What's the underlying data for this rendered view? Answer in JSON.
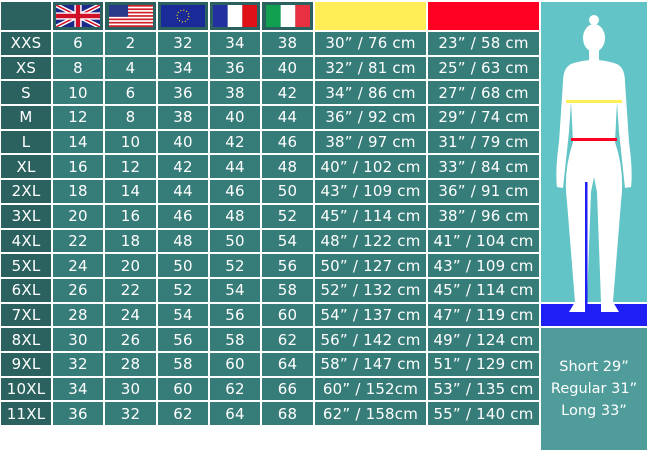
{
  "header": {
    "flags": [
      "uk-flag",
      "us-flag",
      "eu-flag",
      "france-flag",
      "italy-flag"
    ],
    "bust_color": "#ffee55",
    "waist_color": "#ff0022"
  },
  "rows": [
    [
      "XXS",
      "6",
      "2",
      "32",
      "34",
      "38",
      "30” / 76 cm",
      "23” / 58 cm"
    ],
    [
      "XS",
      "8",
      "4",
      "34",
      "36",
      "40",
      "32” / 81 cm",
      "25” / 63 cm"
    ],
    [
      "S",
      "10",
      "6",
      "36",
      "38",
      "42",
      "34” / 86 cm",
      "27” / 68 cm"
    ],
    [
      "M",
      "12",
      "8",
      "38",
      "40",
      "44",
      "36” / 92 cm",
      "29” / 74 cm"
    ],
    [
      "L",
      "14",
      "10",
      "40",
      "42",
      "46",
      "38” / 97 cm",
      "31” / 79 cm"
    ],
    [
      "XL",
      "16",
      "12",
      "42",
      "44",
      "48",
      "40” / 102 cm",
      "33” / 84 cm"
    ],
    [
      "2XL",
      "18",
      "14",
      "44",
      "46",
      "50",
      "43” / 109 cm",
      "36” / 91 cm"
    ],
    [
      "3XL",
      "20",
      "16",
      "46",
      "48",
      "52",
      "45” / 114 cm",
      "38” / 96 cm"
    ],
    [
      "4XL",
      "22",
      "18",
      "48",
      "50",
      "54",
      "48” / 122 cm",
      "41” / 104 cm"
    ],
    [
      "5XL",
      "24",
      "20",
      "50",
      "52",
      "56",
      "50” / 127 cm",
      "43” / 109 cm"
    ],
    [
      "6XL",
      "26",
      "22",
      "52",
      "54",
      "58",
      "52” / 132 cm",
      "45” / 114 cm"
    ],
    [
      "7XL",
      "28",
      "24",
      "54",
      "56",
      "60",
      "54” / 137 cm",
      "47” / 119 cm"
    ],
    [
      "8XL",
      "30",
      "26",
      "56",
      "58",
      "62",
      "56” / 142 cm",
      "49” / 124 cm"
    ],
    [
      "9XL",
      "32",
      "28",
      "58",
      "60",
      "64",
      "58” / 147 cm",
      "51” / 129 cm"
    ],
    [
      "10XL",
      "34",
      "30",
      "60",
      "62",
      "66",
      "60” / 152cm",
      "53” / 135 cm"
    ],
    [
      "11XL",
      "36",
      "32",
      "62",
      "64",
      "68",
      "62” / 158cm",
      "55” / 140 cm"
    ]
  ],
  "inseam": {
    "color": "#1f1ff5",
    "short": "Short 29”",
    "regular": "Regular 31”",
    "long": "Long 33”"
  }
}
